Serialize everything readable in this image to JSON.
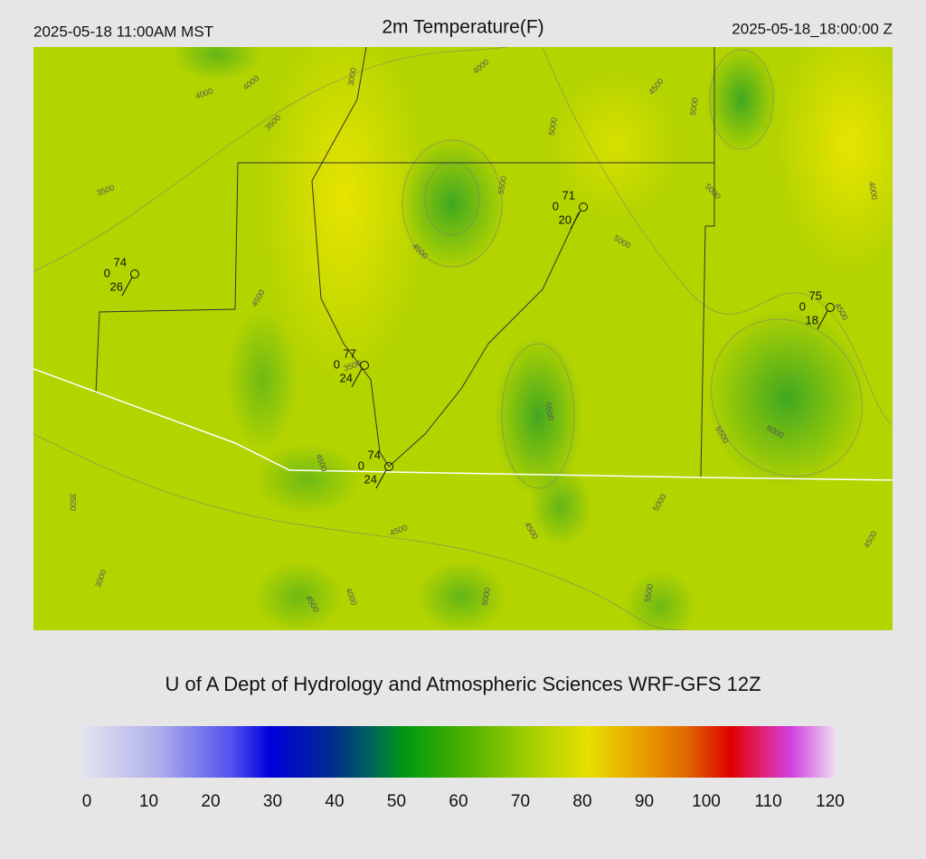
{
  "header": {
    "left": "2025-05-18 11:00AM MST",
    "title": "2m Temperature(F)",
    "right": "2025-05-18_18:00:00 Z"
  },
  "credit": "U of A Dept of Hydrology and Atmospheric Sciences WRF-GFS 12Z",
  "colorbar": {
    "lim": [
      0,
      120
    ],
    "ticks": [
      0,
      10,
      20,
      30,
      40,
      50,
      60,
      70,
      80,
      90,
      100,
      110,
      120
    ]
  },
  "stations": [
    {
      "temp": 74,
      "wind": 0,
      "dew": 26
    },
    {
      "temp": 71,
      "wind": 0,
      "dew": 20
    },
    {
      "temp": 75,
      "wind": 0,
      "dew": 18
    },
    {
      "temp": 77,
      "wind": 0,
      "dew": 24
    },
    {
      "temp": 74,
      "wind": 0,
      "dew": 24
    }
  ],
  "contour_labels": [
    4000,
    4000,
    3000,
    3500,
    3500,
    4000,
    4500,
    5000,
    5000,
    5500,
    5000,
    4000,
    4500,
    5000,
    4500,
    4500,
    3500,
    5500,
    6000,
    5500,
    4500,
    3500,
    5000,
    4500,
    4500,
    4500,
    3000,
    4000,
    4500,
    5000,
    5500
  ]
}
